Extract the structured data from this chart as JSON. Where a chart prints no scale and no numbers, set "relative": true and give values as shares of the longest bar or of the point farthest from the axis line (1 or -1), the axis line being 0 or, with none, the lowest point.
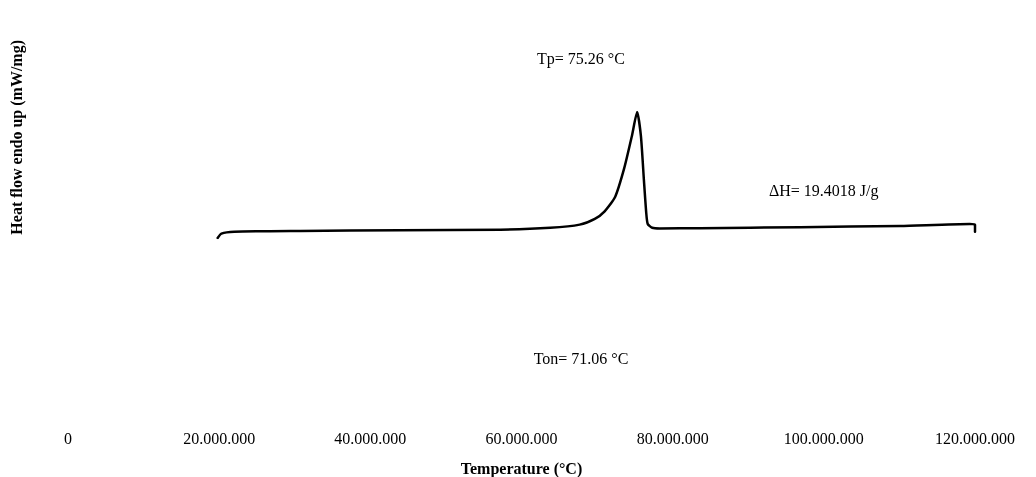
{
  "chart_data": {
    "type": "line",
    "relative": true,
    "xlabel": "Temperature (°C)",
    "ylabel": "Heat flow endo up (mW/mg)",
    "xlim": [
      0,
      120000000
    ],
    "xticks": [
      0,
      {
        "value": 20000000,
        "label": "20.000.000"
      },
      {
        "value": 40000000,
        "label": "40.000.000"
      },
      {
        "value": 60000000,
        "label": "60.000.000"
      },
      {
        "value": 80000000,
        "label": "80.000.000"
      },
      {
        "value": 100000000,
        "label": "100.000.000"
      },
      {
        "value": 120000000,
        "label": "120.000.000"
      }
    ],
    "x": [
      19800000,
      20300000,
      22000000,
      30700000,
      43900000,
      57200000,
      63800000,
      67700000,
      69700000,
      71000000,
      72400000,
      73600000,
      74600000,
      75300000,
      75800000,
      76200000,
      76500000,
      76700000,
      77300000,
      78300000,
      83600000,
      96900000,
      110100000,
      119300000,
      120000000,
      120000000
    ],
    "series": [
      {
        "color": "#000000",
        "values": [
          0,
          0.035,
          0.05,
          0.056,
          0.061,
          0.066,
          0.081,
          0.106,
          0.152,
          0.212,
          0.328,
          0.556,
          0.808,
          1,
          0.808,
          0.455,
          0.202,
          0.111,
          0.081,
          0.076,
          0.078,
          0.086,
          0.096,
          0.111,
          0.106,
          0.05
        ]
      }
    ],
    "marker": "none",
    "line_style": "solid",
    "annotations": [
      "Tp= 75.26 °C",
      "Ton= 71.06 °C",
      "ΔH= 19.4018 J/g"
    ]
  }
}
